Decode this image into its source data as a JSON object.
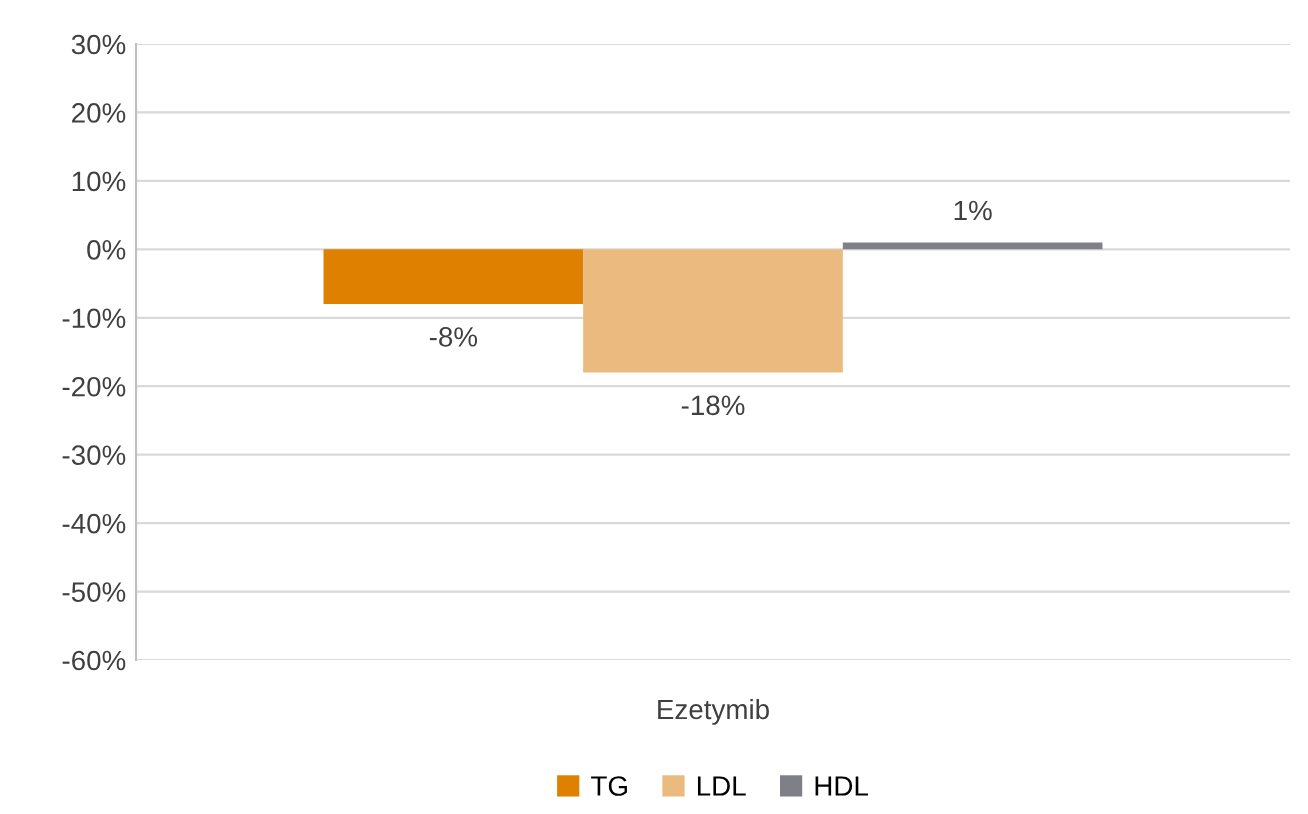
{
  "chart_data": {
    "type": "bar",
    "categories": [
      "Ezetymib"
    ],
    "series": [
      {
        "name": "TG",
        "color": "#e08000",
        "values": [
          -8
        ],
        "value_labels": [
          "-8%"
        ]
      },
      {
        "name": "LDL",
        "color": "#ebba7e",
        "values": [
          -18
        ],
        "value_labels": [
          "-18%"
        ]
      },
      {
        "name": "HDL",
        "color": "#7f7f88",
        "values": [
          1
        ],
        "value_labels": [
          "1%"
        ]
      }
    ],
    "ylim": [
      -60,
      30
    ],
    "yticks": [
      {
        "value": -60,
        "label": "-60%"
      },
      {
        "value": -50,
        "label": "-50%"
      },
      {
        "value": -40,
        "label": "-40%"
      },
      {
        "value": -30,
        "label": "-30%"
      },
      {
        "value": -20,
        "label": "-20%"
      },
      {
        "value": -10,
        "label": "-10%"
      },
      {
        "value": 0,
        "label": "0%"
      },
      {
        "value": 10,
        "label": "10%"
      },
      {
        "value": 20,
        "label": "20%"
      },
      {
        "value": 30,
        "label": "30%"
      }
    ],
    "grid": "y",
    "legend": "bottom"
  }
}
